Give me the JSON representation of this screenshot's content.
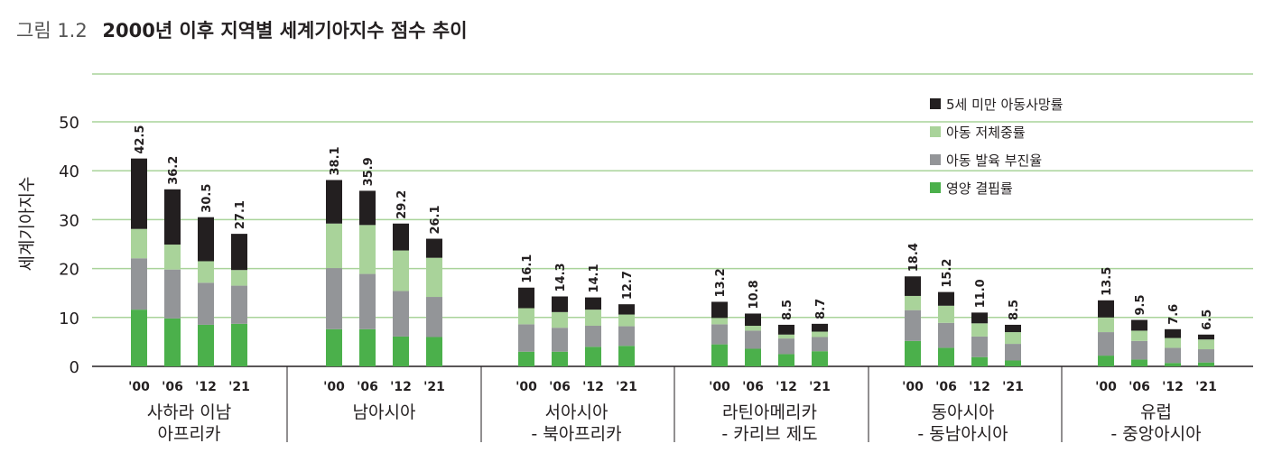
{
  "figure": {
    "label": "그림 1.2",
    "title": "2000년 이후 지역별 세계기아지수 점수 추이"
  },
  "chart_data": {
    "type": "bar",
    "stacked": true,
    "ylabel": "세계기아지수",
    "ylim": [
      0,
      50
    ],
    "yticks": [
      0,
      10,
      20,
      30,
      40,
      50
    ],
    "grid": true,
    "legend_position": "top-right",
    "series": [
      {
        "name": "5세 미만 아동사망률",
        "color": "#231f20"
      },
      {
        "name": "아동 저체중률",
        "color": "#a9d39a"
      },
      {
        "name": "아동 발육 부진율",
        "color": "#939598"
      },
      {
        "name": "영양 결핍률",
        "color": "#4bb04b"
      }
    ],
    "groups": [
      {
        "region": [
          "사하라 이남",
          "아프리카"
        ],
        "bars": [
          {
            "year": "'00",
            "total": "42.5",
            "values": [
              14.4,
              6.0,
              10.5,
              11.6
            ]
          },
          {
            "year": "'06",
            "total": "36.2",
            "values": [
              11.3,
              5.1,
              10.0,
              9.8
            ]
          },
          {
            "year": "'12",
            "total": "30.5",
            "values": [
              9.0,
              4.4,
              8.6,
              8.5
            ]
          },
          {
            "year": "'21",
            "total": "27.1",
            "values": [
              7.4,
              3.2,
              7.8,
              8.7
            ]
          }
        ]
      },
      {
        "region": [
          "남아시아"
        ],
        "bars": [
          {
            "year": "'00",
            "total": "38.1",
            "values": [
              8.9,
              9.1,
              12.5,
              7.6
            ]
          },
          {
            "year": "'06",
            "total": "35.9",
            "values": [
              7.0,
              10.0,
              11.3,
              7.6
            ]
          },
          {
            "year": "'12",
            "total": "29.2",
            "values": [
              5.5,
              8.3,
              9.3,
              6.1
            ]
          },
          {
            "year": "'21",
            "total": "26.1",
            "values": [
              3.9,
              8.0,
              8.2,
              6.0
            ]
          }
        ]
      },
      {
        "region": [
          "서아시아",
          "- 북아프리카"
        ],
        "bars": [
          {
            "year": "'00",
            "total": "16.1",
            "values": [
              4.2,
              3.3,
              5.6,
              3.0
            ]
          },
          {
            "year": "'06",
            "total": "14.3",
            "values": [
              3.2,
              3.2,
              4.9,
              3.0
            ]
          },
          {
            "year": "'12",
            "total": "14.1",
            "values": [
              2.5,
              3.3,
              4.3,
              4.0
            ]
          },
          {
            "year": "'21",
            "total": "12.7",
            "values": [
              2.1,
              2.4,
              4.0,
              4.2
            ]
          }
        ]
      },
      {
        "region": [
          "라틴아메리카",
          "- 카리브 제도"
        ],
        "bars": [
          {
            "year": "'00",
            "total": "13.2",
            "values": [
              3.3,
              1.3,
              4.1,
              4.5
            ]
          },
          {
            "year": "'06",
            "total": "10.8",
            "values": [
              2.5,
              1.0,
              3.7,
              3.6
            ]
          },
          {
            "year": "'12",
            "total": "8.5",
            "values": [
              2.0,
              0.8,
              3.2,
              2.5
            ]
          },
          {
            "year": "'21",
            "total": "8.7",
            "values": [
              1.6,
              1.1,
              2.9,
              3.1
            ]
          }
        ]
      },
      {
        "region": [
          "동아시아",
          "- 동남아시아"
        ],
        "bars": [
          {
            "year": "'00",
            "total": "18.4",
            "values": [
              4.0,
              2.9,
              6.3,
              5.2
            ]
          },
          {
            "year": "'06",
            "total": "15.2",
            "values": [
              2.8,
              3.5,
              5.1,
              3.8
            ]
          },
          {
            "year": "'12",
            "total": "11.0",
            "values": [
              2.2,
              2.7,
              4.2,
              1.9
            ]
          },
          {
            "year": "'21",
            "total": "8.5",
            "values": [
              1.5,
              2.4,
              3.4,
              1.2
            ]
          }
        ]
      },
      {
        "region": [
          "유럽",
          "- 중앙아시아"
        ],
        "bars": [
          {
            "year": "'00",
            "total": "13.5",
            "values": [
              3.5,
              3.0,
              4.8,
              2.2
            ]
          },
          {
            "year": "'06",
            "total": "9.5",
            "values": [
              2.2,
              2.1,
              3.8,
              1.4
            ]
          },
          {
            "year": "'12",
            "total": "7.6",
            "values": [
              1.8,
              2.0,
              3.1,
              0.7
            ]
          },
          {
            "year": "'21",
            "total": "6.5",
            "values": [
              1.0,
              2.0,
              2.7,
              0.8
            ]
          }
        ]
      }
    ]
  }
}
